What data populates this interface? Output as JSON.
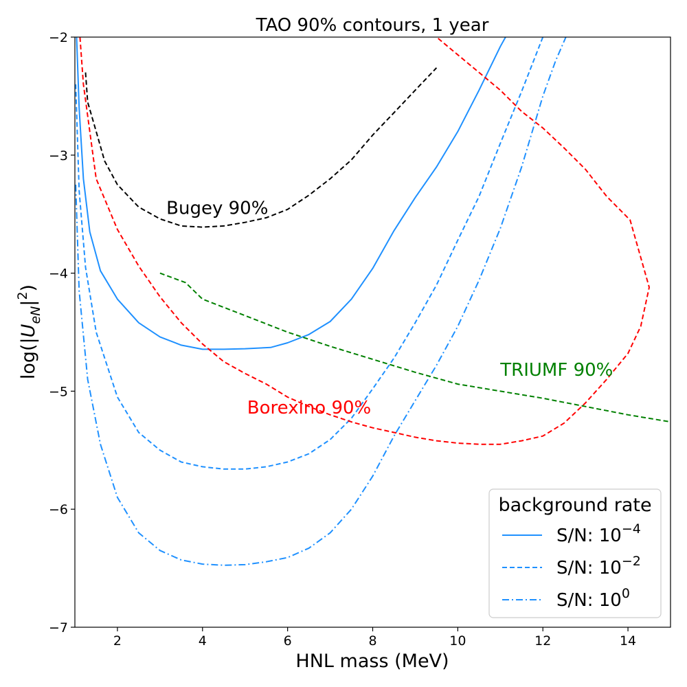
{
  "chart_data": {
    "type": "line",
    "title": "TAO 90% contours, 1 year",
    "xlabel": "HNL mass (MeV)",
    "ylabel": "log(|U_eN|^2)",
    "xlim": [
      1.0,
      15.0
    ],
    "ylim": [
      -7.0,
      -2.0
    ],
    "xticks": [
      2,
      4,
      6,
      8,
      10,
      12,
      14
    ],
    "yticks": [
      -7,
      -6,
      -5,
      -4,
      -3,
      -2
    ],
    "grid": false,
    "legend": {
      "title": "background rate",
      "placement": "lower-right",
      "entries": [
        {
          "label": "S/N: 10",
          "exponent": "−4",
          "series": "sn_1e-4"
        },
        {
          "label": "S/N: 10",
          "exponent": "−2",
          "series": "sn_1e-2"
        },
        {
          "label": "S/N: 10",
          "exponent": "0",
          "series": "sn_1e0"
        }
      ]
    },
    "series": [
      {
        "id": "sn_1e-4",
        "name": "S/N: 10^-4",
        "color": "#1e90ff",
        "style": "solid",
        "points": [
          [
            1.04,
            -2.0
          ],
          [
            1.1,
            -2.6
          ],
          [
            1.2,
            -3.2
          ],
          [
            1.35,
            -3.65
          ],
          [
            1.6,
            -3.98
          ],
          [
            2.0,
            -4.22
          ],
          [
            2.5,
            -4.42
          ],
          [
            3.0,
            -4.54
          ],
          [
            3.5,
            -4.61
          ],
          [
            4.0,
            -4.645
          ],
          [
            4.5,
            -4.645
          ],
          [
            5.0,
            -4.64
          ],
          [
            5.6,
            -4.63
          ],
          [
            6.0,
            -4.59
          ],
          [
            6.5,
            -4.52
          ],
          [
            7.0,
            -4.41
          ],
          [
            7.5,
            -4.22
          ],
          [
            8.0,
            -3.96
          ],
          [
            8.5,
            -3.64
          ],
          [
            9.0,
            -3.36
          ],
          [
            9.5,
            -3.1
          ],
          [
            10.0,
            -2.8
          ],
          [
            10.5,
            -2.45
          ],
          [
            11.0,
            -2.08
          ],
          [
            11.2,
            -1.95
          ]
        ]
      },
      {
        "id": "sn_1e-2",
        "name": "S/N: 10^-2",
        "color": "#1e90ff",
        "style": "dashed",
        "points": [
          [
            1.02,
            -2.4
          ],
          [
            1.1,
            -3.3
          ],
          [
            1.25,
            -3.95
          ],
          [
            1.5,
            -4.5
          ],
          [
            2.0,
            -5.05
          ],
          [
            2.5,
            -5.35
          ],
          [
            3.0,
            -5.5
          ],
          [
            3.5,
            -5.6
          ],
          [
            4.0,
            -5.64
          ],
          [
            4.5,
            -5.66
          ],
          [
            5.0,
            -5.66
          ],
          [
            5.5,
            -5.64
          ],
          [
            6.0,
            -5.6
          ],
          [
            6.5,
            -5.53
          ],
          [
            7.0,
            -5.41
          ],
          [
            7.5,
            -5.23
          ],
          [
            8.0,
            -4.98
          ],
          [
            8.5,
            -4.72
          ],
          [
            9.0,
            -4.42
          ],
          [
            9.5,
            -4.1
          ],
          [
            10.0,
            -3.72
          ],
          [
            10.5,
            -3.35
          ],
          [
            11.0,
            -2.9
          ],
          [
            11.5,
            -2.46
          ],
          [
            12.0,
            -2.0
          ]
        ]
      },
      {
        "id": "sn_1e0",
        "name": "S/N: 10^0",
        "color": "#1e90ff",
        "style": "dashdot",
        "points": [
          [
            1.02,
            -3.25
          ],
          [
            1.1,
            -4.15
          ],
          [
            1.3,
            -4.9
          ],
          [
            1.6,
            -5.45
          ],
          [
            2.0,
            -5.9
          ],
          [
            2.5,
            -6.2
          ],
          [
            3.0,
            -6.35
          ],
          [
            3.5,
            -6.43
          ],
          [
            4.0,
            -6.465
          ],
          [
            4.5,
            -6.475
          ],
          [
            5.0,
            -6.47
          ],
          [
            5.5,
            -6.445
          ],
          [
            6.0,
            -6.41
          ],
          [
            6.5,
            -6.33
          ],
          [
            7.0,
            -6.2
          ],
          [
            7.5,
            -6.0
          ],
          [
            8.0,
            -5.72
          ],
          [
            8.5,
            -5.38
          ],
          [
            9.0,
            -5.08
          ],
          [
            9.5,
            -4.78
          ],
          [
            10.0,
            -4.45
          ],
          [
            10.5,
            -4.06
          ],
          [
            11.0,
            -3.62
          ],
          [
            11.5,
            -3.1
          ],
          [
            12.0,
            -2.5
          ],
          [
            12.3,
            -2.2
          ],
          [
            12.6,
            -1.95
          ]
        ]
      },
      {
        "id": "borexino",
        "name": "Borexino 90%",
        "color": "#ff0000",
        "style": "dashed",
        "points": [
          [
            1.12,
            -2.0
          ],
          [
            1.2,
            -2.4
          ],
          [
            1.5,
            -3.2
          ],
          [
            2.0,
            -3.63
          ],
          [
            2.5,
            -3.94
          ],
          [
            3.0,
            -4.2
          ],
          [
            3.5,
            -4.42
          ],
          [
            4.0,
            -4.6
          ],
          [
            4.5,
            -4.75
          ],
          [
            5.0,
            -4.85
          ],
          [
            5.5,
            -4.94
          ],
          [
            6.0,
            -5.05
          ],
          [
            6.5,
            -5.13
          ],
          [
            7.0,
            -5.2
          ],
          [
            7.5,
            -5.26
          ],
          [
            8.0,
            -5.31
          ],
          [
            8.5,
            -5.35
          ],
          [
            9.0,
            -5.39
          ],
          [
            9.5,
            -5.42
          ],
          [
            10.0,
            -5.44
          ],
          [
            10.5,
            -5.45
          ],
          [
            11.0,
            -5.45
          ],
          [
            11.5,
            -5.42
          ],
          [
            12.0,
            -5.38
          ],
          [
            12.5,
            -5.27
          ],
          [
            13.0,
            -5.1
          ],
          [
            13.5,
            -4.9
          ],
          [
            14.0,
            -4.68
          ],
          [
            14.3,
            -4.45
          ],
          [
            14.5,
            -4.12
          ],
          [
            14.05,
            -3.55
          ],
          [
            13.5,
            -3.35
          ],
          [
            13.0,
            -3.12
          ],
          [
            12.5,
            -2.94
          ],
          [
            12.0,
            -2.77
          ],
          [
            11.5,
            -2.63
          ],
          [
            11.0,
            -2.45
          ],
          [
            10.5,
            -2.3
          ],
          [
            10.0,
            -2.15
          ],
          [
            9.5,
            -2.0
          ]
        ]
      },
      {
        "id": "bugey",
        "name": "Bugey 90%",
        "color": "#000000",
        "style": "dashed",
        "points": [
          [
            1.25,
            -2.3
          ],
          [
            1.3,
            -2.55
          ],
          [
            1.5,
            -2.8
          ],
          [
            1.7,
            -3.05
          ],
          [
            2.0,
            -3.25
          ],
          [
            2.5,
            -3.44
          ],
          [
            3.0,
            -3.54
          ],
          [
            3.5,
            -3.6
          ],
          [
            4.0,
            -3.61
          ],
          [
            4.5,
            -3.6
          ],
          [
            5.0,
            -3.57
          ],
          [
            5.5,
            -3.53
          ],
          [
            6.0,
            -3.46
          ],
          [
            6.5,
            -3.34
          ],
          [
            7.0,
            -3.2
          ],
          [
            7.5,
            -3.04
          ],
          [
            8.0,
            -2.83
          ],
          [
            8.5,
            -2.64
          ],
          [
            9.0,
            -2.45
          ],
          [
            9.5,
            -2.26
          ]
        ]
      },
      {
        "id": "triumf",
        "name": "TRIUMF 90%",
        "color": "#008000",
        "style": "dashed",
        "points": [
          [
            3.0,
            -4.0
          ],
          [
            3.6,
            -4.08
          ],
          [
            4.0,
            -4.22
          ],
          [
            5.0,
            -4.36
          ],
          [
            6.0,
            -4.5
          ],
          [
            7.0,
            -4.62
          ],
          [
            8.0,
            -4.73
          ],
          [
            9.0,
            -4.84
          ],
          [
            10.0,
            -4.94
          ],
          [
            11.0,
            -5.0
          ],
          [
            12.0,
            -5.06
          ],
          [
            13.0,
            -5.13
          ],
          [
            14.0,
            -5.2
          ],
          [
            15.0,
            -5.26
          ]
        ]
      }
    ],
    "annotations": [
      {
        "text": "Bugey 90%",
        "x": 3.15,
        "y": -3.5,
        "color": "#000000"
      },
      {
        "text": "Borexino 90%",
        "x": 5.05,
        "y": -5.19,
        "color": "#ff0000"
      },
      {
        "text": "TRIUMF 90%",
        "x": 11.0,
        "y": -4.87,
        "color": "#008000"
      }
    ]
  }
}
